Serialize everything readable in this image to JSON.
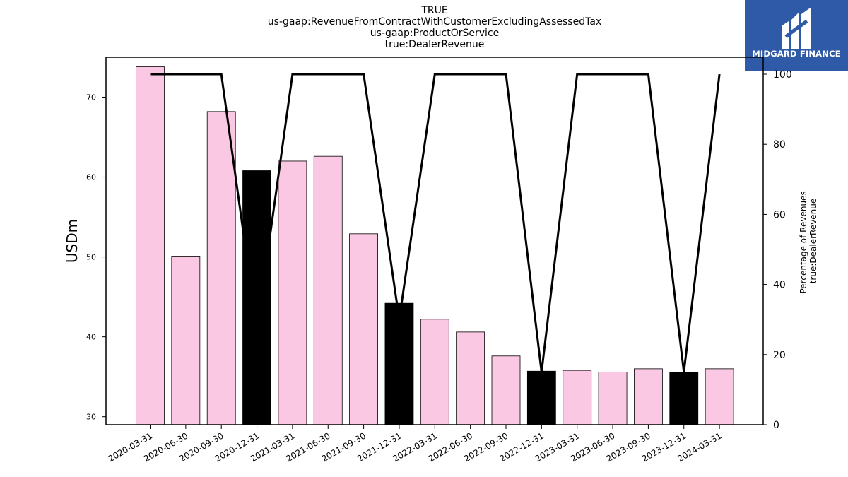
{
  "title_lines": [
    "TRUE",
    "us-gaap:RevenueFromContractWithCustomerExcludingAssessedTax",
    "us-gaap:ProductOrService",
    "true:DealerRevenue"
  ],
  "logo": {
    "text": "MIDGARD FINANCE",
    "color": "#2f5aa8"
  },
  "chart_data": {
    "type": "bar",
    "categories": [
      "2020-03-31",
      "2020-06-30",
      "2020-09-30",
      "2020-12-31",
      "2021-03-31",
      "2021-06-30",
      "2021-09-30",
      "2021-12-31",
      "2022-03-31",
      "2022-06-30",
      "2022-09-30",
      "2022-12-31",
      "2023-03-31",
      "2023-06-30",
      "2023-09-30",
      "2023-12-31",
      "2024-03-31"
    ],
    "values": [
      73.8,
      50.1,
      68.2,
      60.8,
      62.0,
      62.6,
      52.9,
      44.2,
      42.2,
      40.6,
      37.6,
      35.7,
      35.8,
      35.6,
      36.0,
      35.6,
      36.0
    ],
    "bar_colors": [
      "#fbc8e3",
      "#fbc8e3",
      "#fbc8e3",
      "#000000",
      "#fbc8e3",
      "#fbc8e3",
      "#fbc8e3",
      "#000000",
      "#fbc8e3",
      "#fbc8e3",
      "#fbc8e3",
      "#000000",
      "#fbc8e3",
      "#fbc8e3",
      "#fbc8e3",
      "#000000",
      "#fbc8e3"
    ],
    "ylabel": "USDm",
    "ylim": [
      29,
      75
    ],
    "yticks": [
      30,
      40,
      50,
      60,
      70
    ],
    "secondary_axis": {
      "label_lines": [
        "Percentage of Revenues",
        "true:DealerRevenue"
      ],
      "ylim": [
        0,
        100
      ],
      "yticks": [
        0,
        20,
        40,
        60,
        80,
        100
      ],
      "line_values": [
        100,
        100,
        100,
        27,
        100,
        100,
        100,
        30,
        100,
        100,
        100,
        15,
        100,
        100,
        100,
        15,
        100
      ],
      "line_color": "#000000"
    },
    "grid": false
  }
}
